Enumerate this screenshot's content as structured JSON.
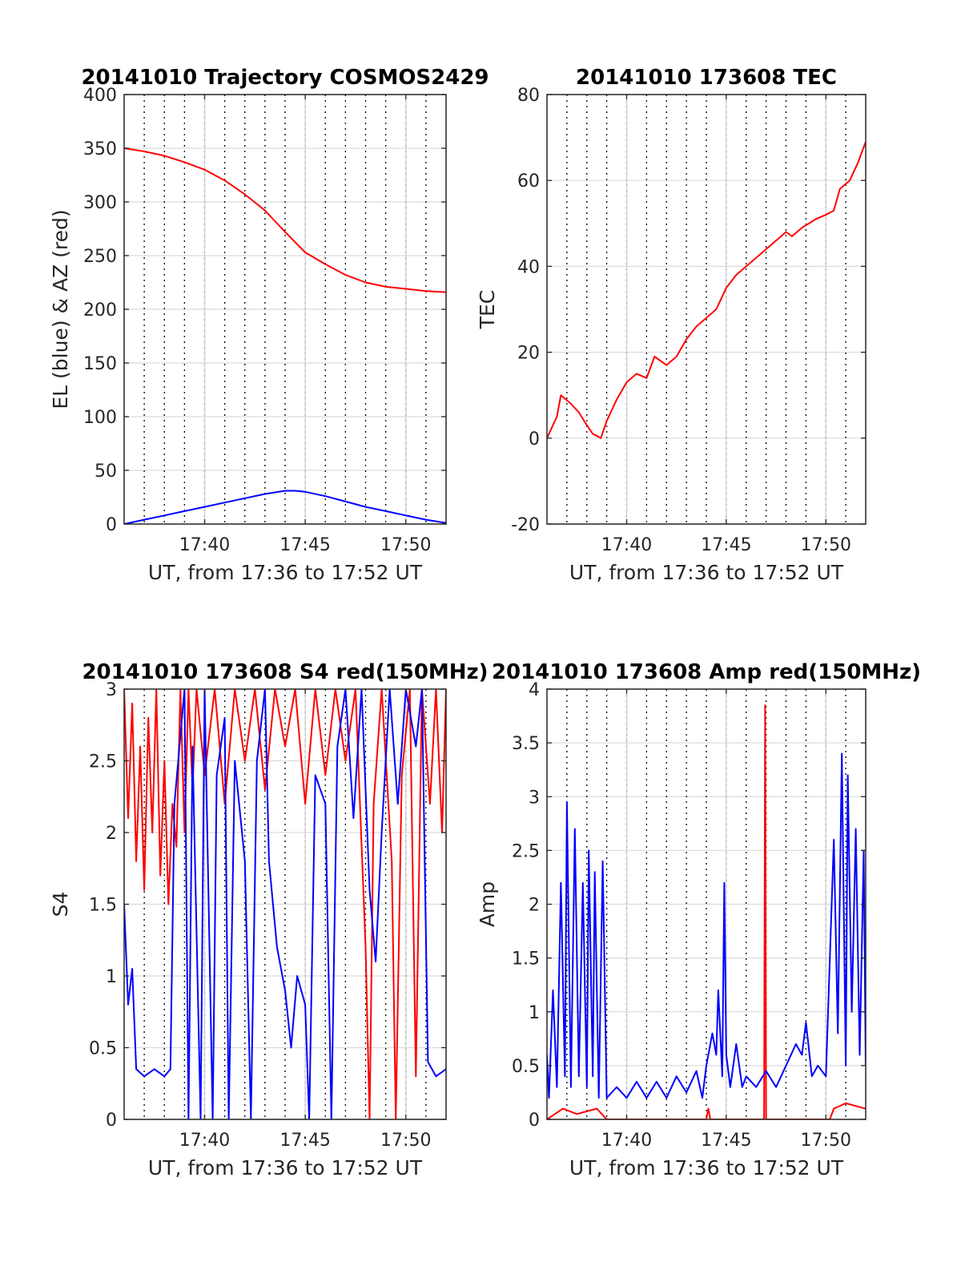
{
  "chart_data": [
    {
      "type": "line",
      "title": "20141010 Trajectory COSMOS2429",
      "xlabel": "UT, from 17:36 to 17:52 UT",
      "ylabel": "EL (blue) & AZ (red)",
      "xlim": [
        0,
        16
      ],
      "ylim": [
        0,
        400
      ],
      "yticks": [
        0,
        50,
        100,
        150,
        200,
        250,
        300,
        350,
        400
      ],
      "xticks": [
        {
          "t": 4,
          "label": "17:40"
        },
        {
          "t": 9,
          "label": "17:45"
        },
        {
          "t": 14,
          "label": "17:50"
        }
      ],
      "minor_grid_dotted": true,
      "grid": true,
      "series": [
        {
          "color": "#ff0000",
          "points": [
            [
              0,
              350
            ],
            [
              1,
              347
            ],
            [
              2,
              343
            ],
            [
              3,
              337
            ],
            [
              4,
              330
            ],
            [
              5,
              320
            ],
            [
              6,
              307
            ],
            [
              7,
              292
            ],
            [
              8,
              272
            ],
            [
              9,
              253
            ],
            [
              10,
              242
            ],
            [
              11,
              232
            ],
            [
              12,
              225
            ],
            [
              13,
              221
            ],
            [
              14,
              219
            ],
            [
              15,
              217
            ],
            [
              16,
              216
            ]
          ]
        },
        {
          "color": "#0000ff",
          "points": [
            [
              0,
              0
            ],
            [
              1,
              4
            ],
            [
              2,
              8
            ],
            [
              3,
              12
            ],
            [
              4,
              16
            ],
            [
              5,
              20
            ],
            [
              6,
              24
            ],
            [
              7,
              28
            ],
            [
              8,
              31
            ],
            [
              8.5,
              31
            ],
            [
              9,
              30
            ],
            [
              10,
              26
            ],
            [
              11,
              21
            ],
            [
              12,
              16
            ],
            [
              13,
              12
            ],
            [
              14,
              8
            ],
            [
              15,
              4
            ],
            [
              16,
              1
            ]
          ]
        }
      ]
    },
    {
      "type": "line",
      "title": "20141010 173608 TEC",
      "xlabel": "UT, from 17:36 to 17:52 UT",
      "ylabel": "TEC",
      "xlim": [
        0,
        16
      ],
      "ylim": [
        -20,
        80
      ],
      "yticks": [
        -20,
        0,
        20,
        40,
        60,
        80
      ],
      "xticks": [
        {
          "t": 4,
          "label": "17:40"
        },
        {
          "t": 9,
          "label": "17:45"
        },
        {
          "t": 14,
          "label": "17:50"
        }
      ],
      "minor_grid_dotted": true,
      "grid": true,
      "series": [
        {
          "color": "#ff0000",
          "points": [
            [
              0,
              0
            ],
            [
              0.5,
              5
            ],
            [
              0.7,
              10
            ],
            [
              1.2,
              8
            ],
            [
              1.6,
              6
            ],
            [
              2,
              3
            ],
            [
              2.3,
              1
            ],
            [
              2.7,
              0
            ],
            [
              3,
              4
            ],
            [
              3.5,
              9
            ],
            [
              4,
              13
            ],
            [
              4.5,
              15
            ],
            [
              5,
              14
            ],
            [
              5.4,
              19
            ],
            [
              6,
              17
            ],
            [
              6.5,
              19
            ],
            [
              7,
              23
            ],
            [
              7.5,
              26
            ],
            [
              8,
              28
            ],
            [
              8.5,
              30
            ],
            [
              9,
              35
            ],
            [
              9.5,
              38
            ],
            [
              10,
              40
            ],
            [
              10.5,
              42
            ],
            [
              11,
              44
            ],
            [
              11.5,
              46
            ],
            [
              12,
              48
            ],
            [
              12.3,
              47
            ],
            [
              12.8,
              49
            ],
            [
              13.5,
              51
            ],
            [
              14,
              52
            ],
            [
              14.4,
              53
            ],
            [
              14.7,
              58
            ],
            [
              15.2,
              60
            ],
            [
              15.6,
              64
            ],
            [
              16,
              69
            ]
          ]
        }
      ]
    },
    {
      "type": "line",
      "title": "20141010 173608 S4 red(150MHz)",
      "xlabel": "UT, from 17:36 to 17:52 UT",
      "ylabel": "S4",
      "xlim": [
        0,
        16
      ],
      "ylim": [
        0,
        3
      ],
      "yticks": [
        0,
        0.5,
        1,
        1.5,
        2,
        2.5,
        3
      ],
      "xticks": [
        {
          "t": 4,
          "label": "17:40"
        },
        {
          "t": 9,
          "label": "17:45"
        },
        {
          "t": 14,
          "label": "17:50"
        }
      ],
      "minor_grid_dotted": true,
      "grid": true,
      "series": [
        {
          "color": "#ff0000",
          "points": [
            [
              0,
              3
            ],
            [
              0.2,
              2.1
            ],
            [
              0.4,
              2.9
            ],
            [
              0.6,
              1.8
            ],
            [
              0.8,
              2.6
            ],
            [
              1,
              1.6
            ],
            [
              1.2,
              2.8
            ],
            [
              1.4,
              2.0
            ],
            [
              1.6,
              3
            ],
            [
              1.8,
              1.7
            ],
            [
              2,
              2.5
            ],
            [
              2.2,
              1.5
            ],
            [
              2.4,
              2.2
            ],
            [
              2.6,
              1.9
            ],
            [
              2.8,
              3
            ],
            [
              3,
              2.0
            ],
            [
              3.2,
              3
            ],
            [
              3.4,
              2.3
            ],
            [
              3.6,
              3
            ],
            [
              4,
              2.4
            ],
            [
              4.5,
              3
            ],
            [
              5,
              2.2
            ],
            [
              5.5,
              3
            ],
            [
              6,
              2.5
            ],
            [
              6.5,
              3
            ],
            [
              7,
              2.3
            ],
            [
              7.5,
              3
            ],
            [
              8,
              2.6
            ],
            [
              8.5,
              3
            ],
            [
              9,
              2.2
            ],
            [
              9.5,
              3
            ],
            [
              10,
              2.4
            ],
            [
              10.5,
              3
            ],
            [
              11,
              2.5
            ],
            [
              11.5,
              3
            ],
            [
              12,
              1.2
            ],
            [
              12.2,
              0
            ],
            [
              12.4,
              2.2
            ],
            [
              12.8,
              3
            ],
            [
              13.3,
              1.8
            ],
            [
              13.5,
              0
            ],
            [
              13.8,
              2.4
            ],
            [
              14.2,
              3
            ],
            [
              14.5,
              0.3
            ],
            [
              14.8,
              3
            ],
            [
              15.2,
              2.2
            ],
            [
              15.5,
              3
            ],
            [
              15.8,
              2.0
            ],
            [
              16,
              3
            ]
          ]
        },
        {
          "color": "#0000ff",
          "points": [
            [
              0,
              1.5
            ],
            [
              0.2,
              0.8
            ],
            [
              0.4,
              1.05
            ],
            [
              0.6,
              0.35
            ],
            [
              1,
              0.3
            ],
            [
              1.5,
              0.35
            ],
            [
              2,
              0.3
            ],
            [
              2.3,
              0.35
            ],
            [
              2.5,
              2.2
            ],
            [
              3,
              3
            ],
            [
              3.2,
              0
            ],
            [
              3.4,
              2.6
            ],
            [
              3.8,
              0
            ],
            [
              4,
              3
            ],
            [
              4.4,
              0
            ],
            [
              4.6,
              2.4
            ],
            [
              5,
              2.8
            ],
            [
              5.2,
              0
            ],
            [
              5.5,
              2.5
            ],
            [
              6,
              1.8
            ],
            [
              6.3,
              0
            ],
            [
              6.6,
              2.5
            ],
            [
              7,
              3
            ],
            [
              7.2,
              1.8
            ],
            [
              7.6,
              1.2
            ],
            [
              8,
              0.9
            ],
            [
              8.3,
              0.5
            ],
            [
              8.6,
              1.0
            ],
            [
              9,
              0.8
            ],
            [
              9.2,
              0
            ],
            [
              9.5,
              2.4
            ],
            [
              10,
              2.2
            ],
            [
              10.3,
              0
            ],
            [
              10.6,
              2.6
            ],
            [
              11,
              3
            ],
            [
              11.4,
              2.1
            ],
            [
              11.8,
              3
            ],
            [
              12.2,
              1.6
            ],
            [
              12.5,
              1.1
            ],
            [
              12.8,
              2.0
            ],
            [
              13.2,
              3
            ],
            [
              13.6,
              2.2
            ],
            [
              14,
              3
            ],
            [
              14.5,
              2.6
            ],
            [
              14.8,
              3
            ],
            [
              15.1,
              0.4
            ],
            [
              15.5,
              0.3
            ],
            [
              16,
              0.35
            ]
          ]
        }
      ]
    },
    {
      "type": "line",
      "title": "20141010 173608 Amp red(150MHz)",
      "xlabel": "UT, from 17:36 to 17:52 UT",
      "ylabel": "Amp",
      "xlim": [
        0,
        16
      ],
      "ylim": [
        0,
        4
      ],
      "yticks": [
        0,
        0.5,
        1,
        1.5,
        2,
        2.5,
        3,
        3.5,
        4
      ],
      "xticks": [
        {
          "t": 4,
          "label": "17:40"
        },
        {
          "t": 9,
          "label": "17:45"
        },
        {
          "t": 14,
          "label": "17:50"
        }
      ],
      "minor_grid_dotted": true,
      "grid": true,
      "series": [
        {
          "color": "#ff0000",
          "points": [
            [
              0,
              0
            ],
            [
              0.8,
              0.1
            ],
            [
              1.5,
              0.05
            ],
            [
              2.5,
              0.1
            ],
            [
              3,
              0
            ],
            [
              8,
              0
            ],
            [
              8.1,
              0.1
            ],
            [
              8.2,
              0
            ],
            [
              10.9,
              0
            ],
            [
              10.95,
              3.85
            ],
            [
              11,
              0
            ],
            [
              14.2,
              0
            ],
            [
              14.4,
              0.1
            ],
            [
              15,
              0.15
            ],
            [
              16,
              0.1
            ]
          ]
        },
        {
          "color": "#0000ff",
          "points": [
            [
              0,
              0.6
            ],
            [
              0.1,
              0.2
            ],
            [
              0.3,
              1.2
            ],
            [
              0.5,
              0.3
            ],
            [
              0.7,
              2.2
            ],
            [
              0.9,
              0.4
            ],
            [
              1,
              2.95
            ],
            [
              1.2,
              0.3
            ],
            [
              1.4,
              2.7
            ],
            [
              1.6,
              0.4
            ],
            [
              1.8,
              2.2
            ],
            [
              2,
              0.3
            ],
            [
              2.1,
              2.5
            ],
            [
              2.3,
              0.4
            ],
            [
              2.4,
              2.3
            ],
            [
              2.6,
              0.2
            ],
            [
              2.8,
              2.4
            ],
            [
              3,
              0.2
            ],
            [
              3.5,
              0.3
            ],
            [
              4,
              0.2
            ],
            [
              4.5,
              0.35
            ],
            [
              5,
              0.2
            ],
            [
              5.5,
              0.35
            ],
            [
              6,
              0.2
            ],
            [
              6.5,
              0.4
            ],
            [
              7,
              0.25
            ],
            [
              7.5,
              0.45
            ],
            [
              7.8,
              0.2
            ],
            [
              8,
              0.5
            ],
            [
              8.3,
              0.8
            ],
            [
              8.5,
              0.6
            ],
            [
              8.6,
              1.2
            ],
            [
              8.8,
              0.4
            ],
            [
              8.9,
              2.2
            ],
            [
              9,
              0.6
            ],
            [
              9.2,
              0.3
            ],
            [
              9.5,
              0.7
            ],
            [
              9.8,
              0.3
            ],
            [
              10,
              0.4
            ],
            [
              10.5,
              0.3
            ],
            [
              11,
              0.45
            ],
            [
              11.5,
              0.3
            ],
            [
              12,
              0.5
            ],
            [
              12.5,
              0.7
            ],
            [
              12.8,
              0.6
            ],
            [
              13,
              0.9
            ],
            [
              13.3,
              0.4
            ],
            [
              13.6,
              0.5
            ],
            [
              14,
              0.4
            ],
            [
              14.4,
              2.6
            ],
            [
              14.6,
              0.8
            ],
            [
              14.8,
              3.4
            ],
            [
              15,
              0.5
            ],
            [
              15.1,
              3.2
            ],
            [
              15.3,
              1.0
            ],
            [
              15.5,
              2.7
            ],
            [
              15.7,
              0.6
            ],
            [
              15.9,
              2.5
            ],
            [
              16,
              0.5
            ]
          ]
        }
      ]
    }
  ]
}
